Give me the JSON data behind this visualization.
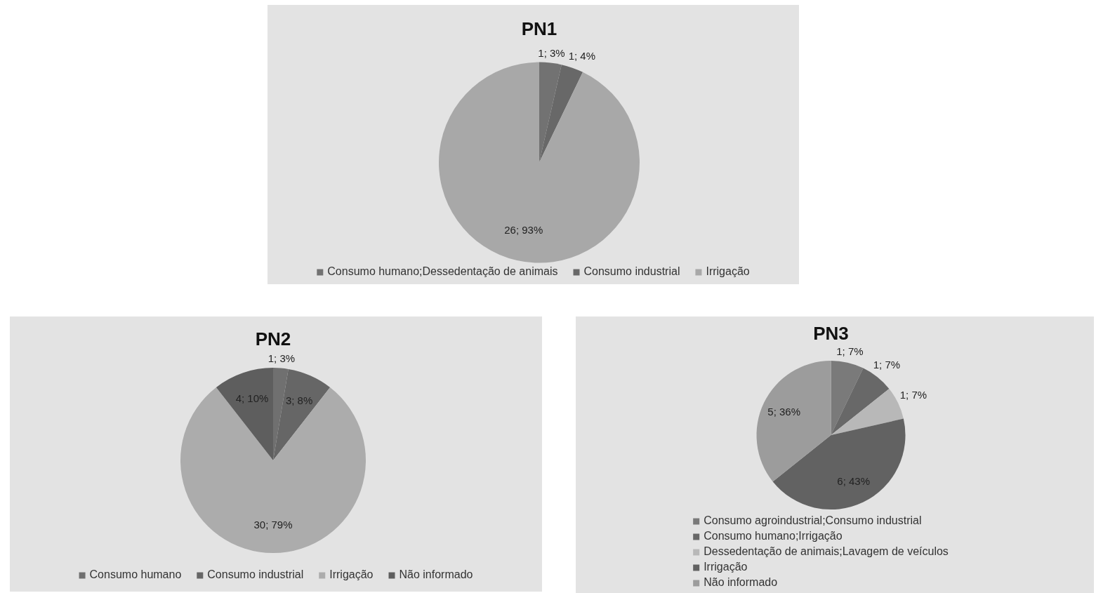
{
  "chart_data": [
    {
      "type": "pie",
      "title": "PN1",
      "categories": [
        "Consumo humano;Dessedentação de animais",
        "Consumo industrial",
        "Irrigação"
      ],
      "values": [
        1,
        1,
        26
      ],
      "colors": [
        "#727272",
        "#686868",
        "#a8a8a8"
      ],
      "value_labels": [
        "1; 3%",
        "1; 4%",
        "26; 93%"
      ],
      "legend": "bottom"
    },
    {
      "type": "pie",
      "title": "PN2",
      "categories": [
        "Consumo humano",
        "Consumo industrial",
        "Irrigação",
        "Não informado"
      ],
      "values": [
        1,
        3,
        30,
        4
      ],
      "colors": [
        "#707070",
        "#666666",
        "#acacac",
        "#5e5e5e"
      ],
      "value_labels": [
        "1; 3%",
        "3; 8%",
        "30; 79%",
        "4; 10%"
      ],
      "legend": "bottom"
    },
    {
      "type": "pie",
      "title": "PN3",
      "categories": [
        "Consumo agroindustrial;Consumo industrial",
        "Consumo humano;Irrigação",
        "Dessedentação de animais;Lavagem de veículos",
        "Irrigação",
        "Não informado"
      ],
      "values": [
        1,
        1,
        1,
        6,
        5
      ],
      "colors": [
        "#7a7a7a",
        "#686868",
        "#b8b8b8",
        "#626262",
        "#9c9c9c"
      ],
      "value_labels": [
        "1; 7%",
        "1; 7%",
        "1; 7%",
        "6; 43%",
        "5; 36%"
      ],
      "legend": "bottom"
    }
  ]
}
